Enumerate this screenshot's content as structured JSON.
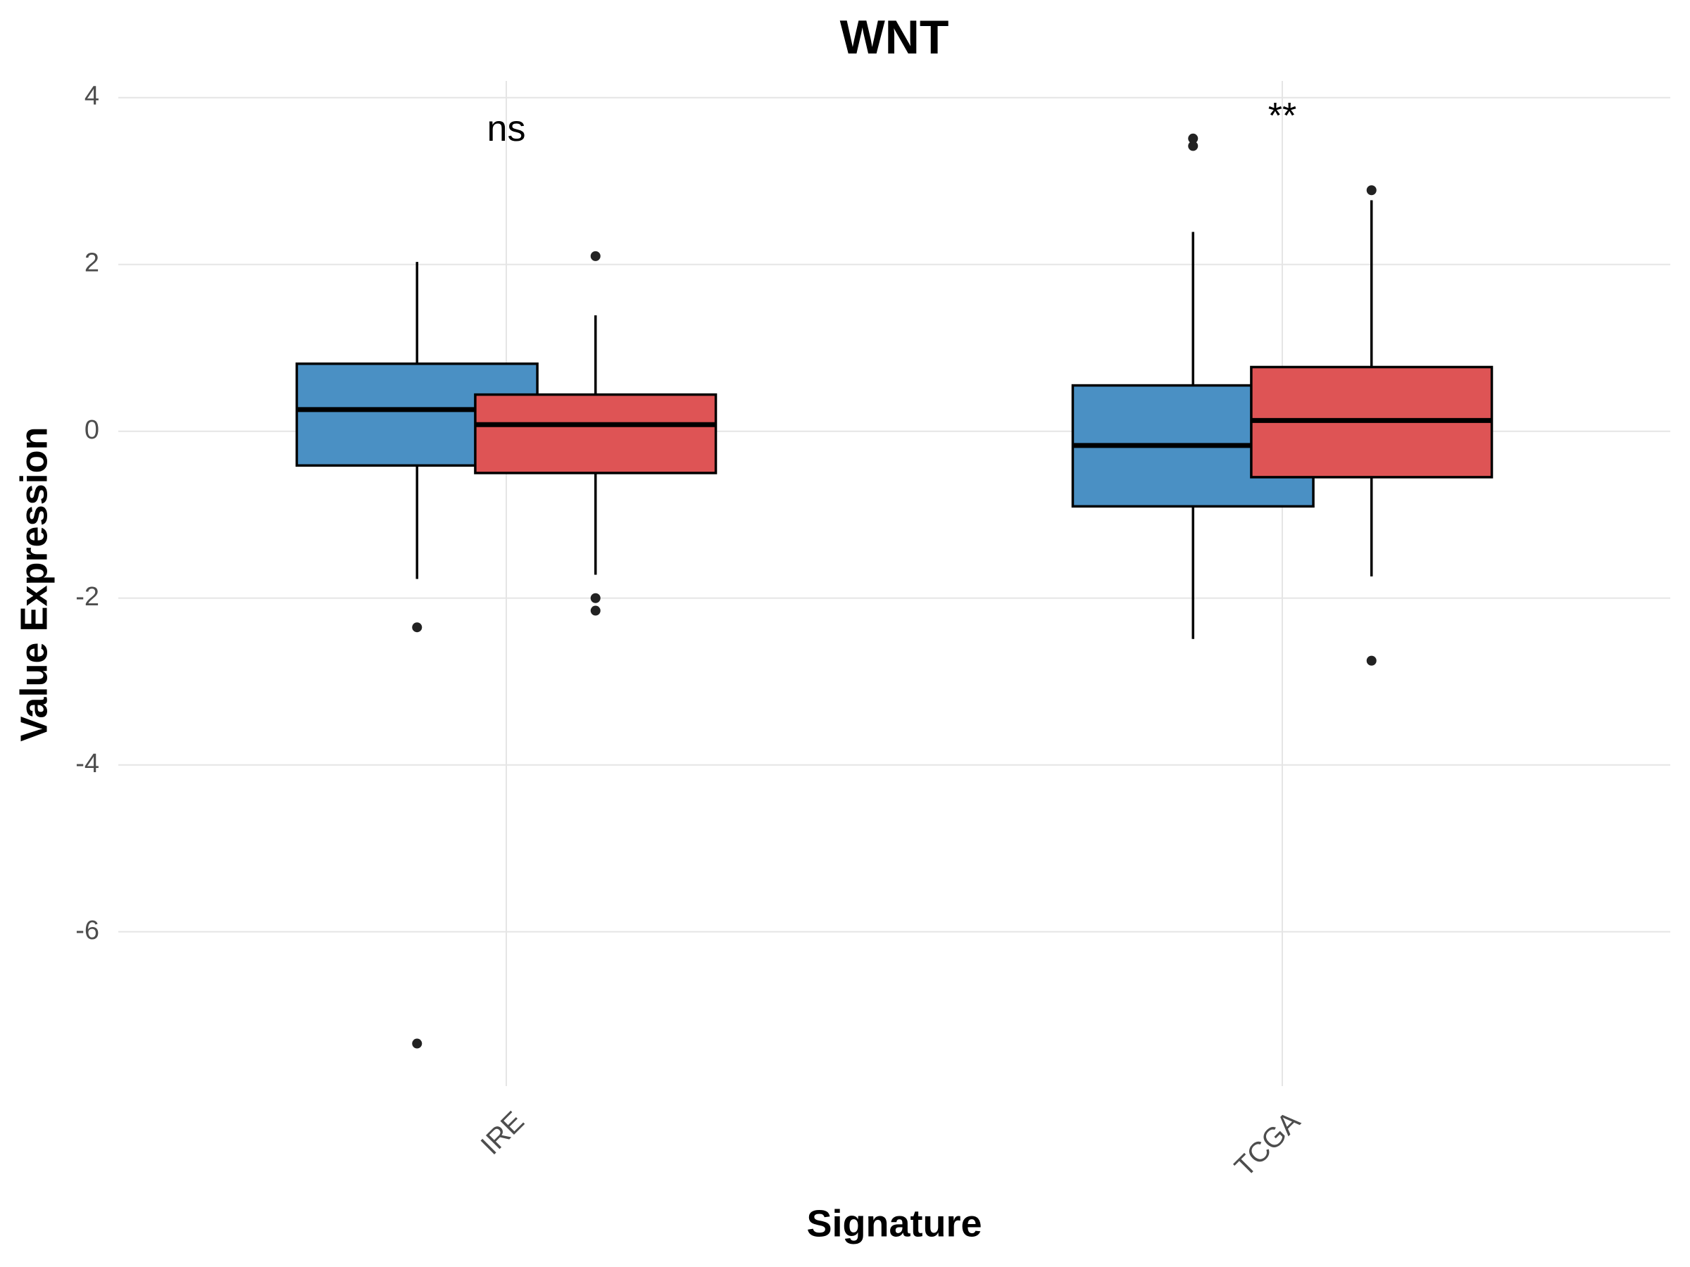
{
  "chart_data": {
    "type": "box",
    "title": "WNT",
    "xlabel": "Signature",
    "ylabel": "Value Expression",
    "categories": [
      "IRE",
      "TCGA"
    ],
    "annotations": [
      {
        "text": "ns",
        "y": 3.6
      },
      {
        "text": "**",
        "y": 3.75
      }
    ],
    "series": [
      {
        "color": "#4a90c4",
        "boxes": [
          {
            "min": -1.77,
            "q1": -0.41,
            "median": 0.26,
            "q3": 0.81,
            "max": 2.03,
            "outliers": [
              -2.35,
              -7.34
            ]
          },
          {
            "min": -2.49,
            "q1": -0.9,
            "median": -0.17,
            "q3": 0.55,
            "max": 2.39,
            "outliers": [
              3.51,
              3.42
            ]
          }
        ]
      },
      {
        "color": "#de5455",
        "boxes": [
          {
            "min": -1.72,
            "q1": -0.5,
            "median": 0.08,
            "q3": 0.44,
            "max": 1.39,
            "outliers": [
              2.1,
              -2.0,
              -2.15
            ]
          },
          {
            "min": -1.74,
            "q1": -0.55,
            "median": 0.13,
            "q3": 0.77,
            "max": 2.77,
            "outliers": [
              2.89,
              -2.75
            ]
          }
        ]
      }
    ],
    "ylim": [
      -7.85,
      4.2
    ],
    "yticks": [
      -6,
      -4,
      -2,
      0,
      2,
      4
    ],
    "grid": true
  }
}
